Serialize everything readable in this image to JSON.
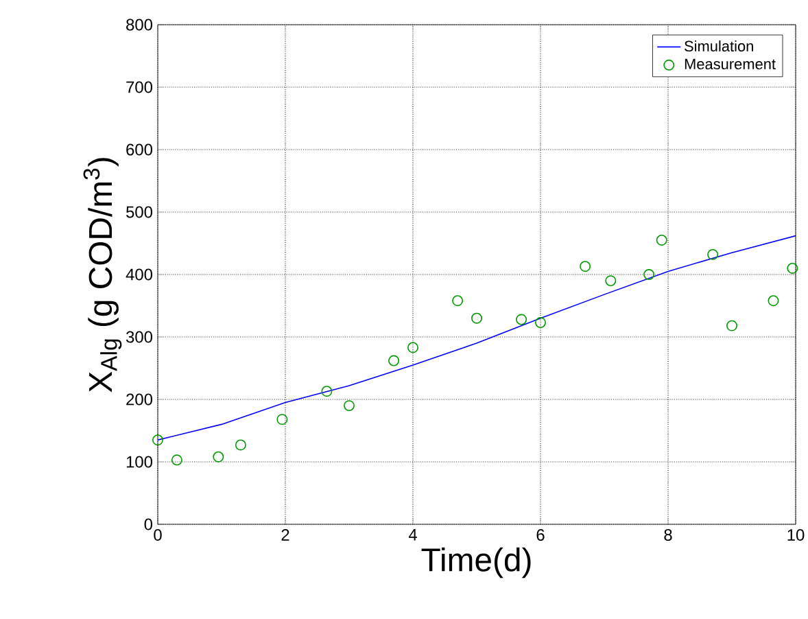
{
  "chart_data": {
    "type": "line",
    "xlabel": "Time(d)",
    "ylabel": "X$_{Alg}$ (g COD/m$^{3}$)",
    "xlim": [
      0,
      10
    ],
    "ylim": [
      0,
      800
    ],
    "xticks": [
      0,
      2,
      4,
      6,
      8,
      10
    ],
    "yticks": [
      0,
      100,
      200,
      300,
      400,
      500,
      600,
      700,
      800
    ],
    "grid": true,
    "legend": "top right",
    "series": [
      {
        "name": "Simulation",
        "color": "#0000ff",
        "marker": "none",
        "line_style": "solid",
        "x": [
          0,
          1,
          2,
          3,
          4,
          5,
          6,
          7,
          8,
          9,
          10
        ],
        "values": [
          135,
          160,
          195,
          222,
          255,
          290,
          330,
          368,
          405,
          435,
          462
        ]
      },
      {
        "name": "Measurement",
        "type": "scatter",
        "color": "#009900",
        "marker": "circle",
        "x": [
          0,
          0.3,
          0.95,
          1.3,
          1.95,
          2.65,
          3,
          3.7,
          4,
          4.7,
          5,
          5.7,
          6,
          6.7,
          7.1,
          7.7,
          7.9,
          8.7,
          9,
          9.65,
          9.95
        ],
        "values": [
          135,
          103,
          108,
          127,
          168,
          213,
          190,
          262,
          283,
          358,
          330,
          328,
          323,
          413,
          390,
          400,
          455,
          432,
          318,
          358,
          410
        ]
      }
    ]
  }
}
